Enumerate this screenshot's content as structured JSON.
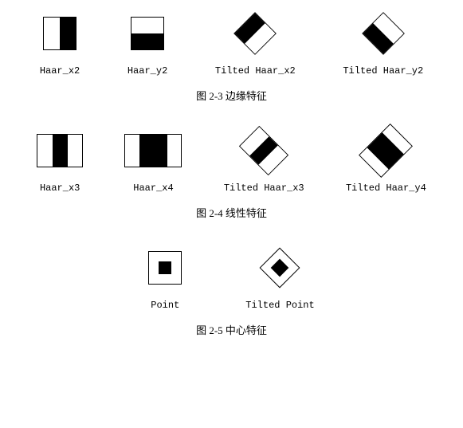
{
  "background_color": "#ffffff",
  "stroke_color": "#000000",
  "fill_black": "#000000",
  "fill_white": "#ffffff",
  "label_font": "Courier New",
  "label_fontsize": 12,
  "caption_fontsize": 13,
  "row1": {
    "caption": "图 2-3  边缘特征",
    "items": [
      {
        "label": "Haar_x2",
        "type": "haar_x2",
        "tilted": false,
        "w": 42,
        "h": 42,
        "stripes": [
          "#ffffff",
          "#000000"
        ],
        "orient": "v"
      },
      {
        "label": "Haar_y2",
        "type": "haar_y2",
        "tilted": false,
        "w": 42,
        "h": 42,
        "stripes": [
          "#ffffff",
          "#000000"
        ],
        "orient": "h"
      },
      {
        "label": "Tilted Haar_x2",
        "type": "haar_x2",
        "tilted": true,
        "w": 38,
        "h": 38,
        "stripes": [
          "#000000",
          "#ffffff"
        ],
        "orient": "v"
      },
      {
        "label": "Tilted Haar_y2",
        "type": "haar_y2",
        "tilted": true,
        "w": 38,
        "h": 38,
        "stripes": [
          "#ffffff",
          "#000000"
        ],
        "orient": "h"
      }
    ]
  },
  "row2": {
    "caption": "图 2-4  线性特征",
    "items": [
      {
        "label": "Haar_x3",
        "type": "haar_x3",
        "tilted": false,
        "w": 58,
        "h": 42,
        "stripes": [
          "#ffffff",
          "#000000",
          "#ffffff"
        ],
        "orient": "v",
        "ratios": [
          1,
          1,
          1
        ]
      },
      {
        "label": "Haar_x4",
        "type": "haar_x4",
        "tilted": false,
        "w": 72,
        "h": 42,
        "stripes": [
          "#ffffff",
          "#000000",
          "#ffffff"
        ],
        "orient": "v",
        "ratios": [
          1,
          2,
          1
        ]
      },
      {
        "label": "Tilted Haar_x3",
        "type": "haar_x3",
        "tilted": true,
        "w": 52,
        "h": 36,
        "stripes": [
          "#ffffff",
          "#000000",
          "#ffffff"
        ],
        "orient": "v",
        "ratios": [
          1,
          1,
          1
        ]
      },
      {
        "label": "Tilted Haar_y4",
        "type": "haar_y4",
        "tilted": true,
        "w": 40,
        "h": 56,
        "stripes": [
          "#ffffff",
          "#000000",
          "#ffffff"
        ],
        "orient": "h",
        "ratios": [
          1,
          2,
          1
        ]
      }
    ]
  },
  "row3": {
    "caption": "图 2-5  中心特征",
    "items": [
      {
        "label": "Point",
        "type": "point",
        "tilted": false,
        "outer": 42,
        "inner": 16,
        "outer_color": "#ffffff",
        "inner_color": "#000000"
      },
      {
        "label": "Tilted Point",
        "type": "point",
        "tilted": true,
        "outer": 36,
        "inner": 16,
        "outer_color": "#ffffff",
        "inner_color": "#000000"
      }
    ]
  }
}
